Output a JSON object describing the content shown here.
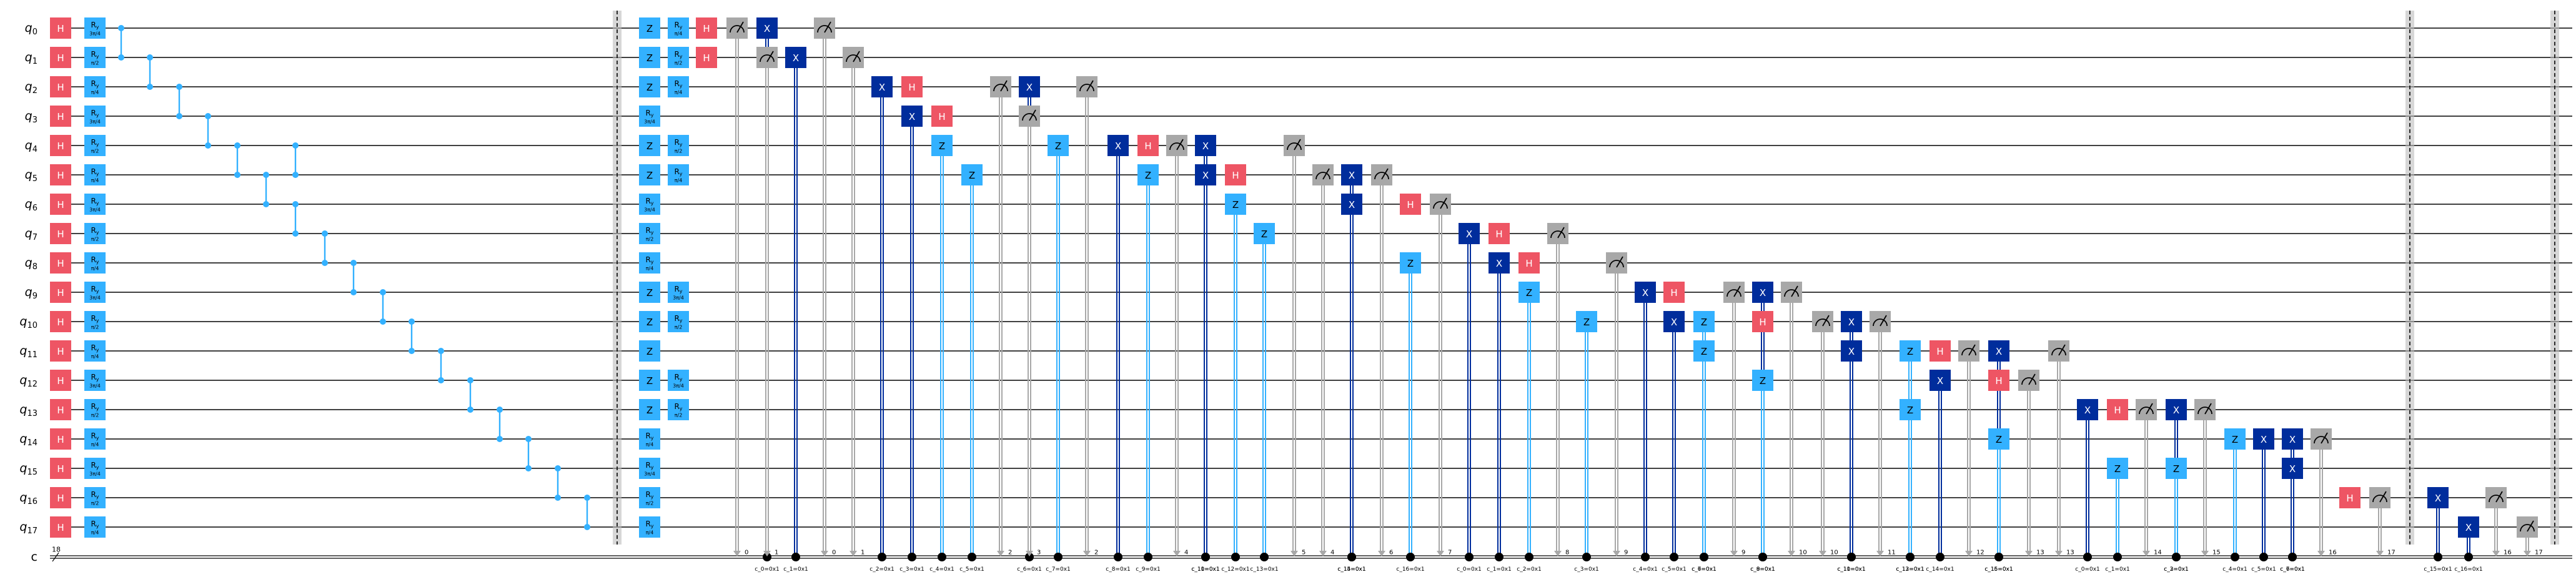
{
  "circuit": {
    "qubits": [
      "q0",
      "q1",
      "q2",
      "q3",
      "q4",
      "q5",
      "q6",
      "q7",
      "q8",
      "q9",
      "q10",
      "q11",
      "q12",
      "q13",
      "q14",
      "q15",
      "q16",
      "q17"
    ],
    "classical": {
      "name": "c",
      "size": "18"
    },
    "ry_angles": [
      "3π/4",
      "π/2",
      "π/4",
      "3π/4",
      "π/2",
      "π/4",
      "3π/4",
      "π/2",
      "π/4",
      "3π/4",
      "π/2",
      "π/4",
      "3π/4",
      "π/2",
      "π/4",
      "3π/4",
      "π/2",
      "π/4"
    ],
    "stage2_ry_angles": [
      "π/4",
      "π/2",
      "π/4",
      "3π/4",
      "π/2",
      "π/4",
      "3π/4",
      "π/2",
      "π/4",
      "3π/4",
      "π/2",
      "π/4",
      "3π/4",
      "π/2",
      "π/4",
      "3π/4",
      "π/2",
      "π/4"
    ],
    "stage2_z": [
      0,
      1,
      2,
      4,
      5,
      9,
      10,
      11,
      12,
      13
    ],
    "stage2_ry": [
      0,
      1,
      2,
      4,
      5,
      9,
      10,
      12,
      13
    ],
    "measure_labels": [
      "0",
      "1",
      "0",
      "1",
      "2",
      "3",
      "2",
      "4",
      "5",
      "4",
      "6",
      "7",
      "8",
      "9",
      "9",
      "10",
      "10",
      "11",
      "12",
      "13",
      "13",
      "14",
      "15",
      "16",
      "17"
    ],
    "condition_labels": [
      "c_0=0x1",
      "c_1=0x1",
      "c_2=0x1",
      "c_3=0x1",
      "c_4=0x1",
      "c_5=0x1",
      "c_6=0x1",
      "c_7=0x1",
      "c_8=0x1",
      "c_9=0x1",
      "c_10=0x1",
      "c_11=0x1",
      "c_12=0x1",
      "c_13=0x1",
      "c_14=0x1",
      "c_15=0x1",
      "c_16=0x1"
    ],
    "gate_labels": {
      "h": "H",
      "x": "X",
      "z": "Z",
      "ry": "R",
      "ry_sub": "y"
    },
    "colors": {
      "h": "#ee5564",
      "ry": "#33b1ff",
      "x": "#002d9c",
      "z": "#33b1ff",
      "measure": "#a8a8a8",
      "control": "#33b1ff",
      "barrier": "#bdbdbd",
      "wire": "#000000",
      "text_light": "#ffffff",
      "text_dark": "#000000"
    }
  }
}
